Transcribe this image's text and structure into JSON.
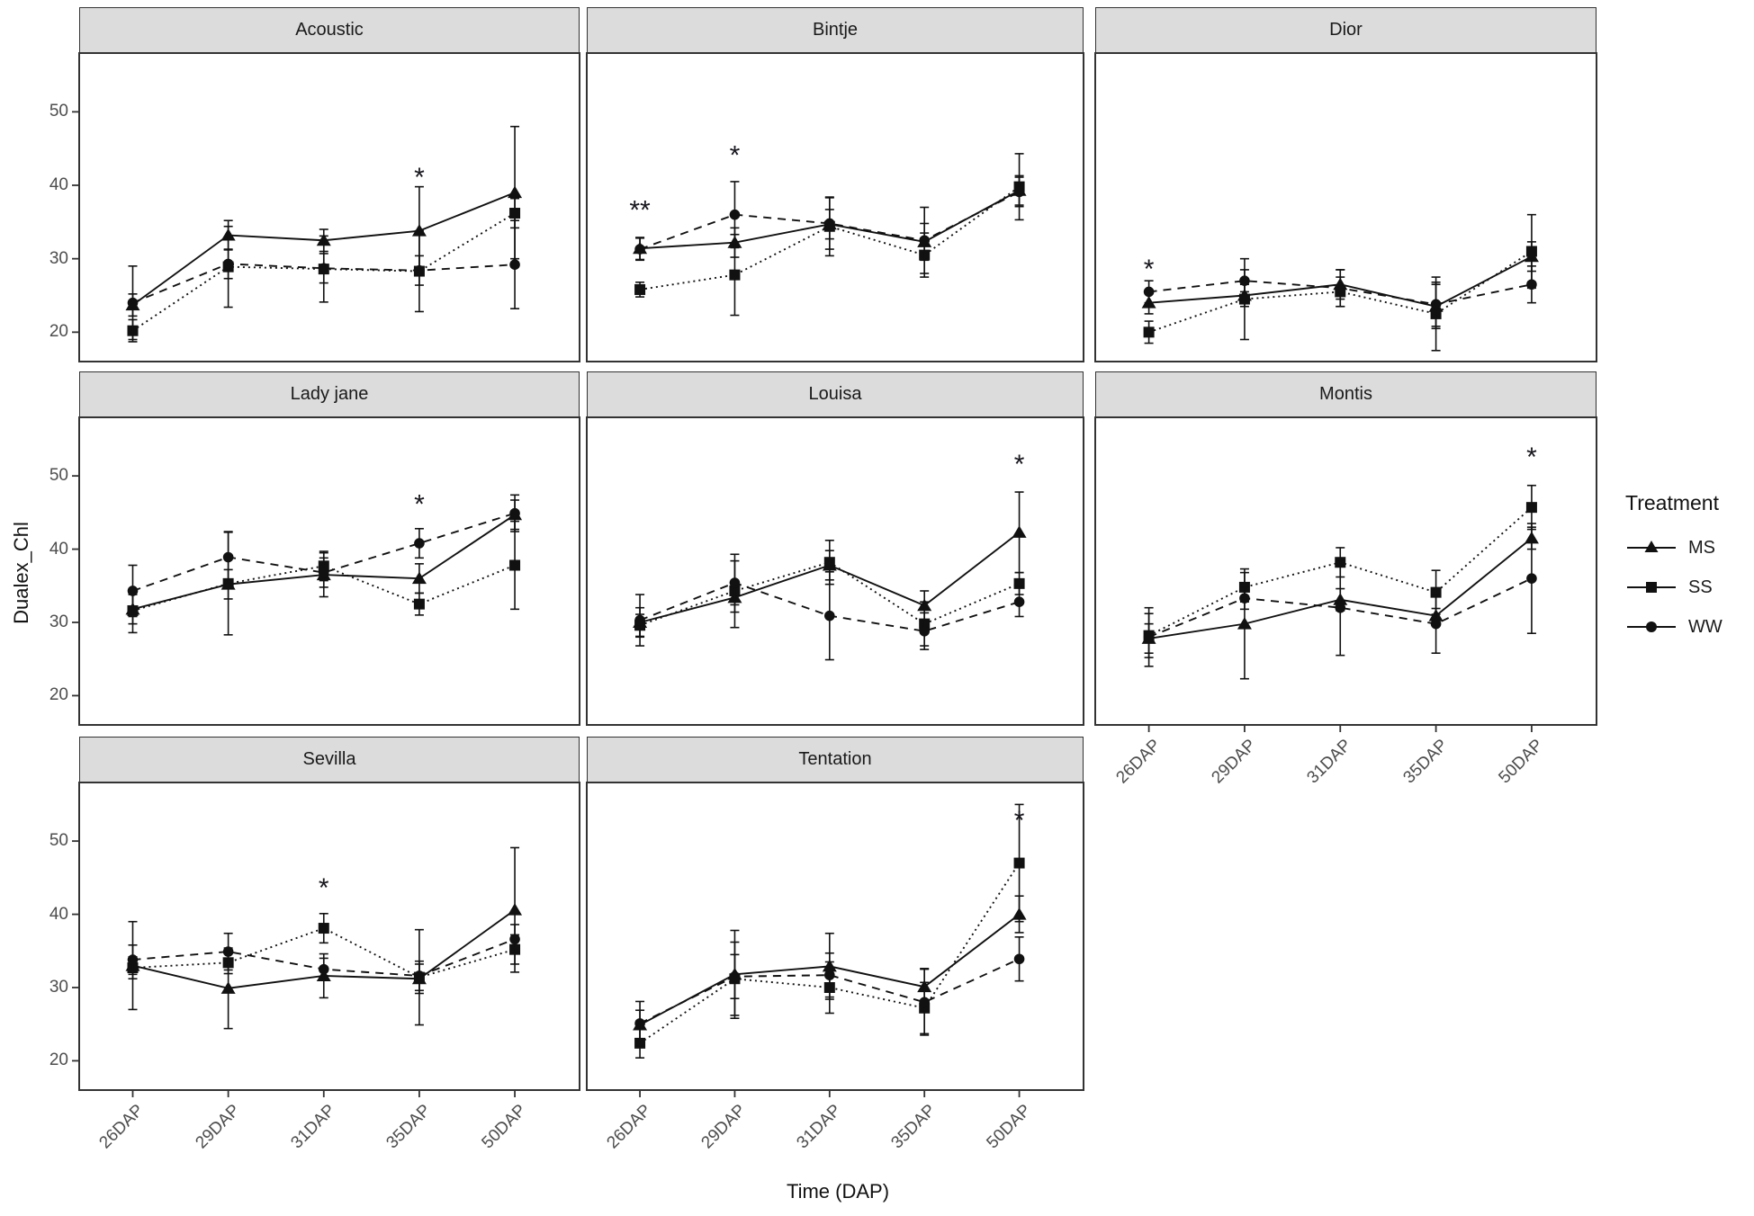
{
  "chart_data": {
    "type": "line",
    "categories": [
      "26DAP",
      "29DAP",
      "31DAP",
      "35DAP",
      "50DAP"
    ],
    "x_axis_label": "Time (DAP)",
    "y_axis_label": "Dualex_Chl",
    "y_ticks": [
      20,
      30,
      40,
      50
    ],
    "ylim": [
      16,
      58
    ],
    "grid": "off",
    "legend": {
      "title": "Treatment",
      "position": "right",
      "entries": [
        {
          "label": "MS",
          "marker": "triangle",
          "line": "solid"
        },
        {
          "label": "SS",
          "marker": "square",
          "line": "dotted"
        },
        {
          "label": "WW",
          "marker": "circle",
          "line": "dashed"
        }
      ]
    },
    "colors": {
      "line": "#111111",
      "marker": "#111111",
      "tick_label": "#4d4d4d",
      "strip_bg": "#dcdcdc",
      "panel_border": "#333333",
      "annotation": "#16161d"
    },
    "facets": [
      {
        "label": "Acoustic",
        "series": {
          "MS": {
            "values": [
              23.7,
              33.2,
              32.5,
              33.8,
              39.0
            ],
            "errors": [
              1.5,
              2.0,
              1.5,
              6.0,
              9.0
            ]
          },
          "SS": {
            "values": [
              20.2,
              28.9,
              28.6,
              28.3,
              36.2
            ],
            "errors": [
              1.5,
              5.5,
              4.5,
              5.5,
              2.0
            ]
          },
          "WW": {
            "values": [
              24.0,
              29.3,
              28.7,
              28.4,
              29.2
            ],
            "errors": [
              5.0,
              2.0,
              2.0,
              2.0,
              6.0
            ]
          }
        },
        "annotations": [
          {
            "category_index": 3,
            "y": 41.0,
            "text": "*"
          }
        ]
      },
      {
        "label": "Bintje",
        "series": {
          "MS": {
            "values": [
              31.4,
              32.2,
              34.7,
              32.3,
              39.3
            ],
            "errors": [
              1.5,
              2.0,
              2.0,
              2.5,
              2.0
            ]
          },
          "SS": {
            "values": [
              25.8,
              27.8,
              34.4,
              30.5,
              39.8
            ],
            "errors": [
              1.0,
              5.5,
              4.0,
              3.0,
              4.5
            ]
          },
          "WW": {
            "values": [
              31.3,
              36.0,
              34.8,
              32.5,
              39.1
            ],
            "errors": [
              1.5,
              4.5,
              3.5,
              4.5,
              2.0
            ]
          }
        },
        "annotations": [
          {
            "category_index": 0,
            "y": 36.5,
            "text": "**"
          },
          {
            "category_index": 1,
            "y": 44.0,
            "text": "*"
          }
        ]
      },
      {
        "label": "Dior",
        "series": {
          "MS": {
            "values": [
              24.0,
              25.0,
              26.5,
              23.5,
              30.3
            ],
            "errors": [
              1.5,
              1.5,
              2.0,
              3.0,
              2.0
            ]
          },
          "SS": {
            "values": [
              20.0,
              24.5,
              25.5,
              22.5,
              31.0
            ],
            "errors": [
              1.5,
              5.5,
              2.0,
              5.0,
              5.0
            ]
          },
          "WW": {
            "values": [
              25.5,
              27.0,
              26.0,
              23.8,
              26.5
            ],
            "errors": [
              1.5,
              1.5,
              2.5,
              3.0,
              2.5
            ]
          }
        },
        "annotations": [
          {
            "category_index": 0,
            "y": 28.5,
            "text": "*"
          }
        ]
      },
      {
        "label": "Lady jane",
        "series": {
          "MS": {
            "values": [
              31.8,
              35.2,
              36.5,
              36.0,
              44.7
            ],
            "errors": [
              2.0,
              2.0,
              3.0,
              2.0,
              2.0
            ]
          },
          "SS": {
            "values": [
              31.6,
              35.3,
              37.7,
              32.5,
              37.8
            ],
            "errors": [
              3.0,
              7.0,
              2.0,
              1.5,
              6.0
            ]
          },
          "WW": {
            "values": [
              34.3,
              38.9,
              36.8,
              40.8,
              44.9
            ],
            "errors": [
              3.5,
              3.5,
              2.0,
              2.0,
              2.5
            ]
          }
        },
        "annotations": [
          {
            "category_index": 3,
            "y": 46.0,
            "text": "*"
          }
        ]
      },
      {
        "label": "Louisa",
        "series": {
          "MS": {
            "values": [
              30.0,
              33.4,
              37.8,
              32.3,
              42.3
            ],
            "errors": [
              2.0,
              2.0,
              2.0,
              2.0,
              5.5
            ]
          },
          "SS": {
            "values": [
              29.6,
              34.3,
              38.2,
              29.8,
              35.3
            ],
            "errors": [
              1.5,
              5.0,
              3.0,
              3.0,
              1.5
            ]
          },
          "WW": {
            "values": [
              30.3,
              35.4,
              30.9,
              28.8,
              32.8
            ],
            "errors": [
              3.5,
              3.0,
              6.0,
              2.5,
              2.0
            ]
          }
        },
        "annotations": [
          {
            "category_index": 4,
            "y": 51.5,
            "text": "*"
          }
        ]
      },
      {
        "label": "Montis",
        "series": {
          "MS": {
            "values": [
              27.8,
              29.8,
              33.1,
              30.9,
              41.5
            ],
            "errors": [
              2.0,
              7.5,
              1.5,
              1.0,
              1.5
            ]
          },
          "SS": {
            "values": [
              28.2,
              34.8,
              38.2,
              34.1,
              45.7
            ],
            "errors": [
              3.0,
              2.0,
              2.0,
              3.0,
              3.0
            ]
          },
          "WW": {
            "values": [
              28.0,
              33.3,
              32.0,
              29.8,
              36.0
            ],
            "errors": [
              4.0,
              1.5,
              6.5,
              4.0,
              7.5
            ]
          }
        },
        "annotations": [
          {
            "category_index": 4,
            "y": 52.5,
            "text": "*"
          }
        ]
      },
      {
        "label": "Sevilla",
        "series": {
          "MS": {
            "values": [
              33.0,
              29.9,
              31.6,
              31.2,
              40.6
            ],
            "errors": [
              6.0,
              5.5,
              3.0,
              2.0,
              8.5
            ]
          },
          "SS": {
            "values": [
              32.7,
              33.4,
              38.1,
              31.4,
              35.2
            ],
            "errors": [
              1.5,
              1.5,
              2.0,
              6.5,
              2.0
            ]
          },
          "WW": {
            "values": [
              33.8,
              34.9,
              32.5,
              31.6,
              36.6
            ],
            "errors": [
              2.0,
              2.5,
              1.5,
              2.0,
              2.0
            ]
          }
        },
        "annotations": [
          {
            "category_index": 2,
            "y": 43.5,
            "text": "*"
          }
        ]
      },
      {
        "label": "Tentation",
        "series": {
          "MS": {
            "values": [
              24.9,
              31.8,
              32.9,
              30.1,
              40.0
            ],
            "errors": [
              2.0,
              6.0,
              4.5,
              2.5,
              2.5
            ]
          },
          "SS": {
            "values": [
              22.4,
              31.2,
              30.0,
              27.2,
              47.0
            ],
            "errors": [
              2.0,
              5.0,
              3.5,
              3.5,
              8.0
            ]
          },
          "WW": {
            "values": [
              25.1,
              31.5,
              31.7,
              28.0,
              33.9
            ],
            "errors": [
              3.0,
              3.0,
              3.0,
              4.5,
              3.0
            ]
          }
        },
        "annotations": [
          {
            "category_index": 4,
            "y": 52.7,
            "text": "*"
          }
        ]
      }
    ]
  }
}
